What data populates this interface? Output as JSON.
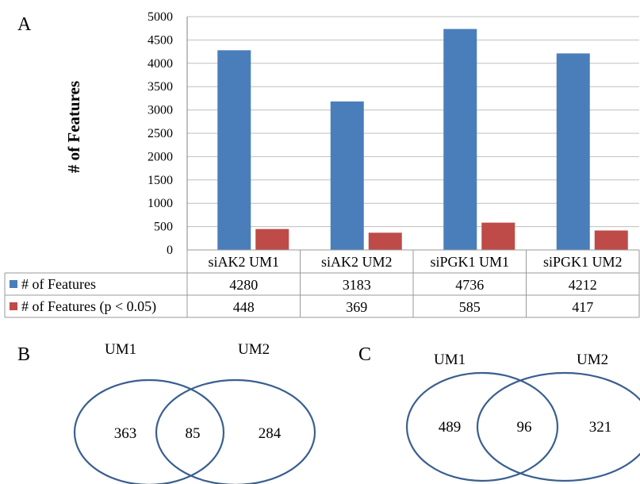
{
  "panels": {
    "a": "A",
    "b": "B",
    "c": "C"
  },
  "colors": {
    "series1": "#4a7ebb",
    "series2": "#be4b48",
    "venn_stroke": "#3a5f8f",
    "grid": "#bfbfbf"
  },
  "chart_data": {
    "type": "bar",
    "title": "",
    "xlabel": "",
    "ylabel": "# of Features",
    "ylim": [
      0,
      5000
    ],
    "yticks": [
      "0",
      "500",
      "1000",
      "1500",
      "2000",
      "2500",
      "3000",
      "3500",
      "4000",
      "4500",
      "5000"
    ],
    "categories": [
      "siAK2 UM1",
      "siAK2 UM2",
      "siPGK1 UM1",
      "siPGK1 UM2"
    ],
    "series": [
      {
        "name": "# of Features",
        "values": [
          4280,
          3183,
          4736,
          4212
        ]
      },
      {
        "name": "# of Features (p < 0.05)",
        "values": [
          448,
          369,
          585,
          417
        ]
      }
    ],
    "data_table": true,
    "legend_placement": "data-table-keys"
  },
  "table": {
    "rows": [
      {
        "label": "# of Features",
        "cells": [
          "4280",
          "3183",
          "4736",
          "4212"
        ]
      },
      {
        "label": "# of Features (p < 0.05)",
        "cells": [
          "448",
          "369",
          "585",
          "417"
        ]
      }
    ]
  },
  "venn_b": {
    "left_label": "UM1",
    "right_label": "UM2",
    "left_only": "363",
    "overlap": "85",
    "right_only": "284"
  },
  "venn_c": {
    "left_label": "UM1",
    "right_label": "UM2",
    "left_only": "489",
    "overlap": "96",
    "right_only": "321"
  }
}
